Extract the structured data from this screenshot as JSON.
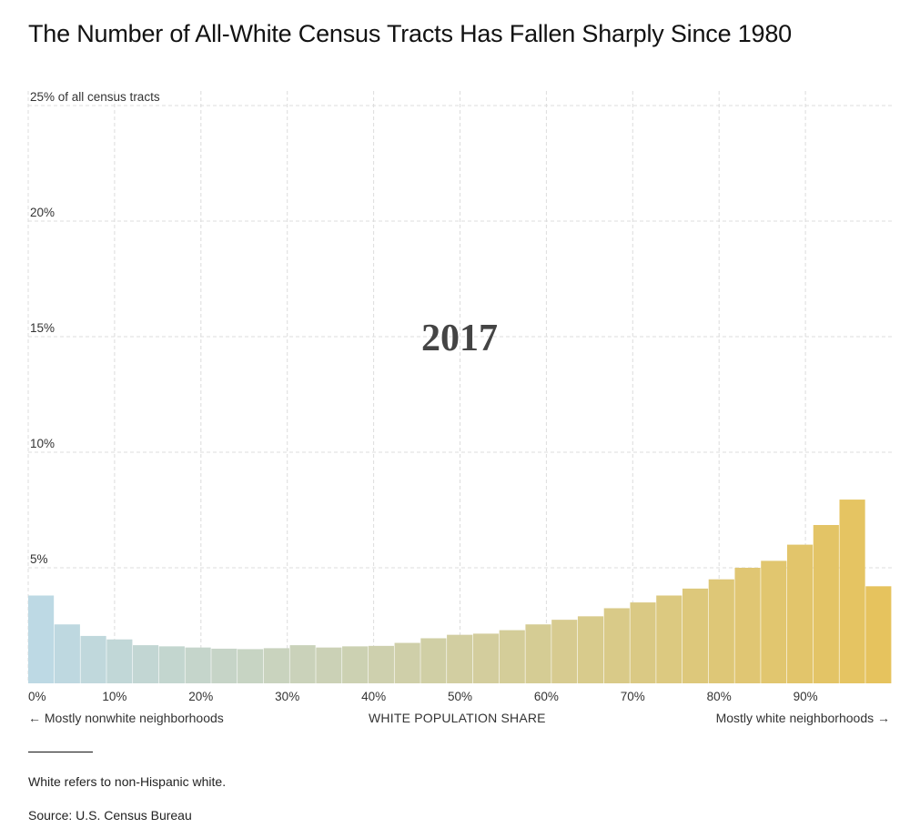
{
  "title": "The Number of All-White Census Tracts Has Fallen Sharply Since 1980",
  "chart_data": {
    "type": "bar",
    "year_label": "2017",
    "xlabel": "WHITE POPULATION SHARE",
    "x_left_note": "← Mostly nonwhite neighborhoods",
    "x_right_note": "Mostly white neighborhoods →",
    "y_tick_labels": [
      "5%",
      "10%",
      "15%",
      "20%",
      "25% of all census tracts"
    ],
    "y_ticks": [
      5,
      10,
      15,
      20,
      25
    ],
    "ylim": [
      0,
      25
    ],
    "x_tick_labels": [
      "0%",
      "10%",
      "20%",
      "30%",
      "40%",
      "50%",
      "60%",
      "70%",
      "80%",
      "90%"
    ],
    "x_ticks": [
      0,
      10,
      20,
      30,
      40,
      50,
      60,
      70,
      80,
      90
    ],
    "xlim": [
      0,
      100
    ],
    "bin_width": 3.03,
    "bin_starts": [
      0,
      3.03,
      6.06,
      9.09,
      12.12,
      15.15,
      18.18,
      21.21,
      24.24,
      27.27,
      30.3,
      33.33,
      36.36,
      39.39,
      42.42,
      45.45,
      48.48,
      51.52,
      54.55,
      57.58,
      60.61,
      63.64,
      66.67,
      69.7,
      72.73,
      75.76,
      78.79,
      81.82,
      84.85,
      87.88,
      90.91,
      93.94,
      96.97
    ],
    "values": [
      3.8,
      2.55,
      2.05,
      1.9,
      1.65,
      1.6,
      1.55,
      1.5,
      1.48,
      1.52,
      1.65,
      1.55,
      1.6,
      1.62,
      1.75,
      1.95,
      2.1,
      2.15,
      2.3,
      2.55,
      2.75,
      2.9,
      3.25,
      3.5,
      3.8,
      4.1,
      4.5,
      5.0,
      5.3,
      6.0,
      6.85,
      7.95,
      4.2
    ],
    "color_start": "#bdd9e4",
    "color_end": "#e6c35e",
    "grid": true,
    "grid_color": "#dcdcdc"
  },
  "footnote": "White refers to non-Hispanic white.",
  "source": "Source: U.S. Census Bureau"
}
